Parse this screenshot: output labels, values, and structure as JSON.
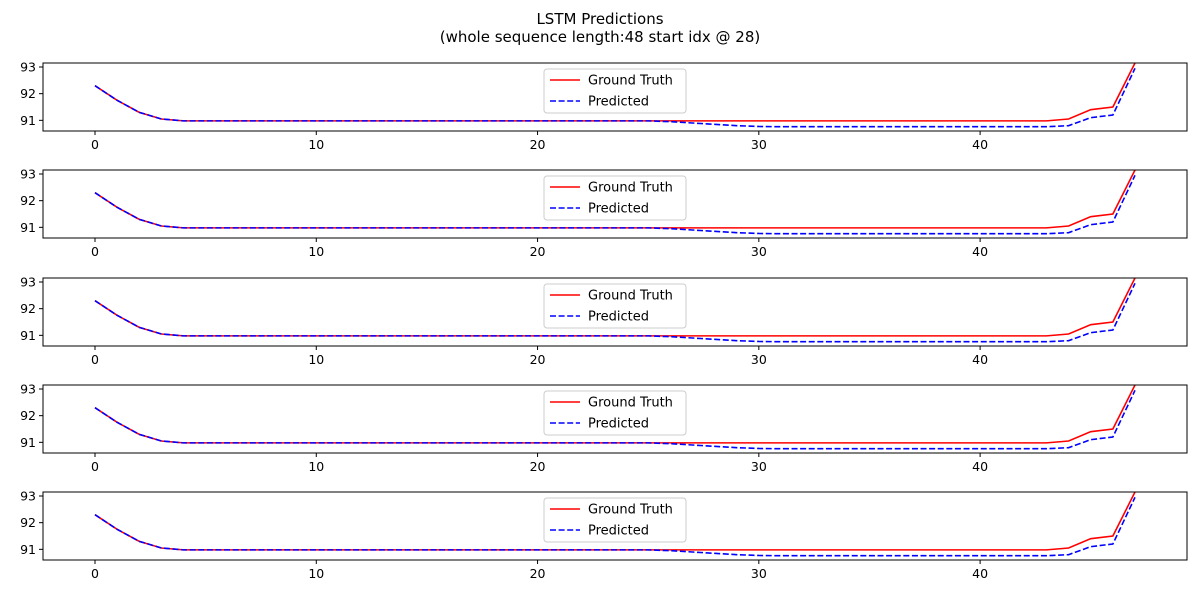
{
  "figure": {
    "title_line1": "LSTM Predictions",
    "title_line2": "(whole sequence length:48 start idx @ 28)"
  },
  "chart_data": {
    "type": "line",
    "subplot_count": 5,
    "xlim": [
      -2.35,
      49.35
    ],
    "ylim": [
      90.6,
      93.15
    ],
    "xticks": [
      0,
      10,
      20,
      30,
      40
    ],
    "yticks": [
      91,
      92,
      93
    ],
    "legend_position": "upper center",
    "x": [
      0,
      1,
      2,
      3,
      4,
      5,
      6,
      7,
      8,
      9,
      10,
      11,
      12,
      13,
      14,
      15,
      16,
      17,
      18,
      19,
      20,
      21,
      22,
      23,
      24,
      25,
      26,
      27,
      28,
      29,
      30,
      31,
      32,
      33,
      34,
      35,
      36,
      37,
      38,
      39,
      40,
      41,
      42,
      43,
      44,
      45,
      46,
      47
    ],
    "series": [
      {
        "name": "Ground Truth",
        "color": "#ff0000",
        "dash": "solid",
        "values": [
          92.3,
          91.75,
          91.3,
          91.05,
          90.98,
          90.98,
          90.98,
          90.98,
          90.98,
          90.98,
          90.98,
          90.98,
          90.98,
          90.98,
          90.98,
          90.98,
          90.98,
          90.98,
          90.98,
          90.98,
          90.98,
          90.98,
          90.98,
          90.98,
          90.98,
          90.98,
          90.98,
          90.98,
          90.98,
          90.98,
          90.98,
          90.98,
          90.98,
          90.98,
          90.98,
          90.98,
          90.98,
          90.98,
          90.98,
          90.98,
          90.98,
          90.98,
          90.98,
          90.98,
          91.05,
          91.4,
          91.5,
          93.15
        ]
      },
      {
        "name": "Predicted",
        "color": "#0000ff",
        "dash": "dashed",
        "values": [
          92.3,
          91.75,
          91.3,
          91.05,
          90.98,
          90.98,
          90.98,
          90.98,
          90.98,
          90.98,
          90.98,
          90.98,
          90.98,
          90.98,
          90.98,
          90.98,
          90.98,
          90.98,
          90.98,
          90.98,
          90.98,
          90.98,
          90.98,
          90.98,
          90.98,
          90.98,
          90.95,
          90.9,
          90.85,
          90.8,
          90.77,
          90.76,
          90.76,
          90.76,
          90.76,
          90.76,
          90.76,
          90.76,
          90.76,
          90.76,
          90.76,
          90.76,
          90.76,
          90.76,
          90.8,
          91.1,
          91.2,
          92.95
        ]
      }
    ]
  }
}
